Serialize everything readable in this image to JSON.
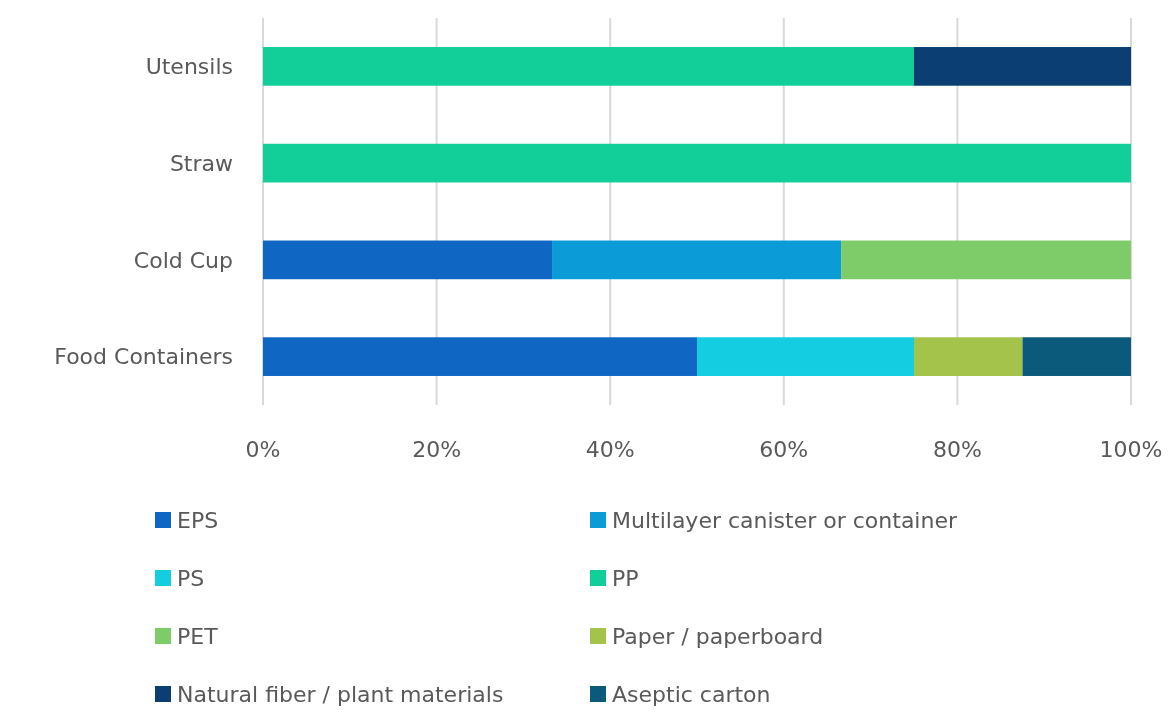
{
  "chart_data": {
    "type": "bar",
    "orientation": "horizontal",
    "stacked": true,
    "categories": [
      "Utensils",
      "Straw",
      "Cold Cup",
      "Food Containers"
    ],
    "series": [
      {
        "name": "EPS",
        "color": "#0f67c3",
        "values": [
          null,
          null,
          33.3,
          50
        ]
      },
      {
        "name": "Multilayer canister or container",
        "color": "#0b9bd7",
        "values": [
          null,
          null,
          33.3,
          null
        ]
      },
      {
        "name": "PS",
        "color": "#14cde0",
        "values": [
          null,
          null,
          null,
          25
        ]
      },
      {
        "name": "PP",
        "color": "#12cf9a",
        "values": [
          75,
          100,
          null,
          null
        ]
      },
      {
        "name": "PET",
        "color": "#7ecb69",
        "values": [
          null,
          null,
          33.4,
          null
        ]
      },
      {
        "name": "Paper / paperboard",
        "color": "#a3c34a",
        "values": [
          null,
          null,
          null,
          12.5
        ]
      },
      {
        "name": "Natural fiber / plant materials",
        "color": "#0b3f73",
        "values": [
          25,
          null,
          null,
          null
        ]
      },
      {
        "name": "Aseptic carton",
        "color": "#0b5a7c",
        "values": [
          null,
          null,
          null,
          12.5
        ]
      }
    ],
    "xlim": [
      0,
      100
    ],
    "xticks": [
      {
        "value": 0,
        "label": "0%"
      },
      {
        "value": 20,
        "label": "20%"
      },
      {
        "value": 40,
        "label": "40%"
      },
      {
        "value": 60,
        "label": "60%"
      },
      {
        "value": 80,
        "label": "80%"
      },
      {
        "value": 100,
        "label": "100%"
      }
    ],
    "grid": "x",
    "legend": "bottom"
  }
}
